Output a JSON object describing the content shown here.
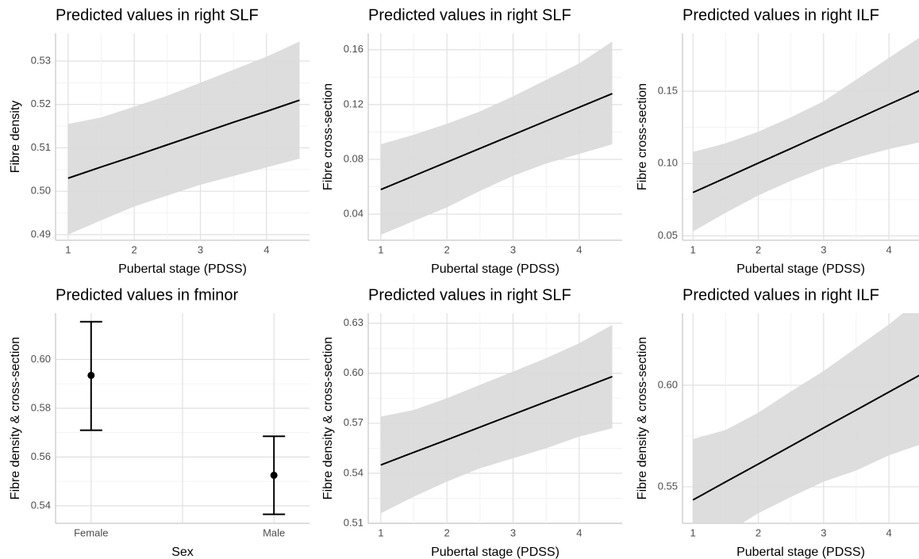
{
  "chart_data": [
    {
      "type": "line",
      "title": "Predicted values in right SLF",
      "x_label": "Pubertal stage (PDSS)",
      "y_label": "Fibre density",
      "x": [
        1,
        1.5,
        2,
        2.5,
        3,
        3.5,
        4,
        4.5
      ],
      "series": [
        {
          "color": "#000000",
          "band_color": "#d9d9d9",
          "values": [
            0.503,
            0.5056,
            0.5081,
            0.5107,
            0.5133,
            0.5159,
            0.5184,
            0.521
          ],
          "lower": [
            0.49,
            0.4933,
            0.4965,
            0.499,
            0.5015,
            0.5035,
            0.5055,
            0.5075
          ],
          "upper": [
            0.5155,
            0.517,
            0.5195,
            0.522,
            0.525,
            0.528,
            0.531,
            0.5345
          ]
        }
      ],
      "xlim": [
        0.81,
        4.65
      ],
      "xticks": [
        1,
        2,
        3,
        4
      ],
      "ylim": [
        0.4887,
        0.5364
      ],
      "yticks": [
        0.49,
        {
          "value": 0.5,
          "label": "0.50"
        },
        0.51,
        0.52,
        0.53
      ],
      "grid": true
    },
    {
      "type": "line",
      "title": "Predicted values in right SLF",
      "x_label": "Pubertal stage (PDSS)",
      "y_label": "Fibre cross-section",
      "x": [
        1,
        1.5,
        2,
        2.5,
        3,
        3.5,
        4,
        4.5
      ],
      "series": [
        {
          "color": "#000000",
          "band_color": "#d9d9d9",
          "values": [
            0.058,
            0.068,
            0.078,
            0.088,
            0.098,
            0.108,
            0.118,
            0.128
          ],
          "lower": [
            0.025,
            0.035,
            0.045,
            0.057,
            0.068,
            0.077,
            0.084,
            0.091
          ],
          "upper": [
            0.091,
            0.098,
            0.106,
            0.115,
            0.126,
            0.138,
            0.15,
            0.166
          ]
        }
      ],
      "xlim": [
        0.81,
        4.65
      ],
      "xticks": [
        1,
        2,
        3,
        4
      ],
      "ylim": [
        0.021,
        0.172
      ],
      "yticks": [
        0.04,
        0.08,
        0.12,
        0.16
      ],
      "grid": true
    },
    {
      "type": "line",
      "title": "Predicted values in right ILF",
      "x_label": "Pubertal stage (PDSS)",
      "y_label": "Fibre cross-section",
      "x": [
        1,
        1.5,
        2,
        2.5,
        3,
        3.5,
        4,
        4.5
      ],
      "series": [
        {
          "color": "#000000",
          "band_color": "#d9d9d9",
          "values": [
            0.08,
            0.0901,
            0.1003,
            0.1104,
            0.1206,
            0.1307,
            0.1409,
            0.151
          ],
          "lower": [
            0.053,
            0.066,
            0.078,
            0.088,
            0.097,
            0.104,
            0.11,
            0.115
          ],
          "upper": [
            0.108,
            0.114,
            0.122,
            0.132,
            0.143,
            0.158,
            0.173,
            0.188
          ]
        }
      ],
      "xlim": [
        0.84,
        4.46
      ],
      "xticks": [
        1,
        2,
        3,
        4
      ],
      "ylim": [
        0.047,
        0.19
      ],
      "yticks": [
        0.05,
        {
          "value": 0.1,
          "label": "0.10"
        },
        0.15
      ],
      "grid": true
    },
    {
      "type": "errorbar",
      "title": "Predicted values in fminor",
      "x_label": "Sex",
      "y_label": "Fibre density & cross-section",
      "categories": [
        "Female",
        "Male"
      ],
      "series": [
        {
          "color": "#000000",
          "values": [
            0.5935,
            0.5525
          ],
          "lower": [
            0.571,
            0.5365
          ],
          "upper": [
            0.6155,
            0.5685
          ]
        }
      ],
      "ylim": [
        0.5328,
        0.619
      ],
      "yticks": [
        0.54,
        0.56,
        0.58,
        {
          "value": 0.6,
          "label": "0.60"
        }
      ],
      "grid": true
    },
    {
      "type": "line",
      "title": "Predicted values in right SLF",
      "x_label": "Pubertal stage (PDSS)",
      "y_label": "Fibre density & cross-section",
      "x": [
        1,
        1.5,
        2,
        2.5,
        3,
        3.5,
        4,
        4.5
      ],
      "series": [
        {
          "color": "#000000",
          "band_color": "#d9d9d9",
          "values": [
            0.545,
            0.5526,
            0.5601,
            0.5677,
            0.5753,
            0.5829,
            0.5904,
            0.598
          ],
          "lower": [
            0.516,
            0.526,
            0.535,
            0.543,
            0.549,
            0.555,
            0.562,
            0.567
          ],
          "upper": [
            0.574,
            0.578,
            0.585,
            0.593,
            0.601,
            0.609,
            0.618,
            0.629
          ]
        }
      ],
      "xlim": [
        0.81,
        4.65
      ],
      "xticks": [
        1,
        2,
        3,
        4
      ],
      "ylim": [
        0.51,
        0.636
      ],
      "yticks": [
        0.51,
        0.54,
        0.57,
        {
          "value": 0.6,
          "label": "0.60"
        },
        0.63
      ],
      "grid": true
    },
    {
      "type": "line",
      "title": "Predicted values in right ILF",
      "x_label": "Pubertal stage (PDSS)",
      "y_label": "Fibre density & cross-section",
      "x": [
        1,
        1.5,
        2,
        2.5,
        3,
        3.5,
        4,
        4.5
      ],
      "series": [
        {
          "color": "#000000",
          "band_color": "#d9d9d9",
          "values": [
            0.5435,
            0.5524,
            0.5612,
            0.5701,
            0.579,
            0.5878,
            0.5967,
            0.6055
          ],
          "lower": [
            0.5135,
            0.527,
            0.537,
            0.545,
            0.5525,
            0.558,
            0.5655,
            0.571
          ],
          "upper": [
            0.5735,
            0.578,
            0.5865,
            0.597,
            0.607,
            0.6185,
            0.63,
            0.643
          ]
        }
      ],
      "xlim": [
        0.84,
        4.46
      ],
      "xticks": [
        1,
        2,
        3,
        4
      ],
      "ylim": [
        0.532,
        0.6355
      ],
      "yticks": [
        0.55,
        {
          "value": 0.6,
          "label": "0.60"
        }
      ],
      "grid": true
    }
  ]
}
